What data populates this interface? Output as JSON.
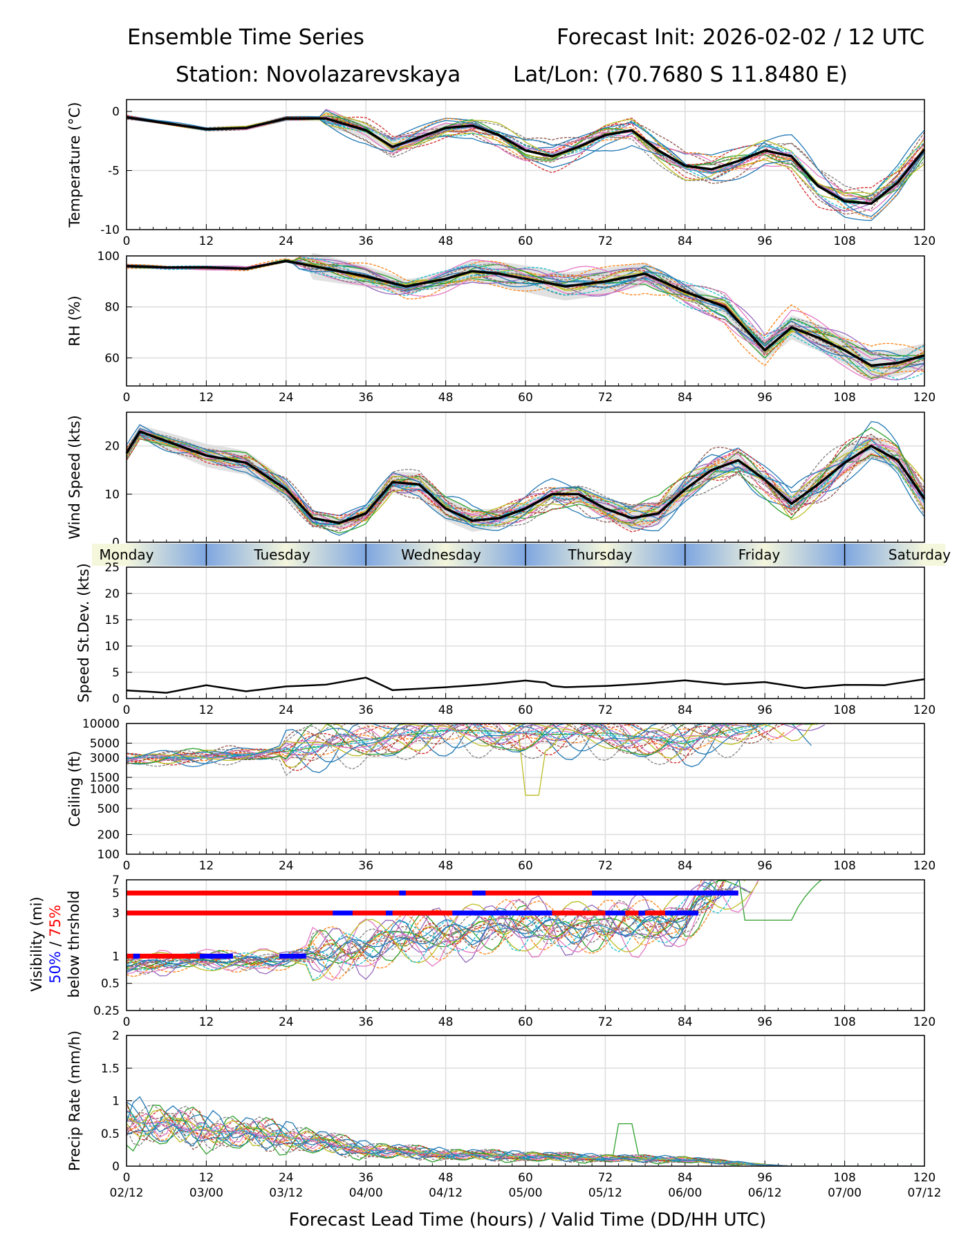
{
  "header": {
    "title_left": "Ensemble Time Series",
    "title_right": "Forecast Init: 2026-02-02 / 12 UTC",
    "station": "Station: Novolazarevskaya",
    "latlon": "Lat/Lon: (70.7680 S 11.8480 E)"
  },
  "days": [
    "Monday",
    "Tuesday",
    "Wednesday",
    "Thursday",
    "Friday",
    "Saturday"
  ],
  "x_ticks": [
    "0",
    "12",
    "24",
    "36",
    "48",
    "60",
    "72",
    "84",
    "96",
    "108",
    "120"
  ],
  "valid_ticks": [
    "02/12",
    "03/00",
    "03/12",
    "04/00",
    "04/12",
    "05/00",
    "05/12",
    "06/00",
    "06/12",
    "07/00",
    "07/12"
  ],
  "x_label": "Forecast Lead Time (hours) / Valid Time (DD/HH UTC)",
  "vis_label": {
    "line1": "Visibility (mi)",
    "p50": "50%",
    "sep": " / ",
    "p75": "75%",
    "line3": "below thrshold"
  },
  "colors": {
    "members": [
      "#1f77b4",
      "#ff7f0e",
      "#2ca02c",
      "#d62728",
      "#9467bd",
      "#8c564b",
      "#e377c2",
      "#7f7f7f",
      "#bcbd22",
      "#17becf"
    ],
    "mean": "#000000",
    "spread": "#d9d9d9",
    "p50": "#0000ff",
    "p75": "#ff0000",
    "day_bar": "#7ea6e0",
    "day_bar_light": "#f5f7dc"
  },
  "chart_data": [
    {
      "type": "line",
      "name": "temperature",
      "ylabel": "Temperature (°C)",
      "ylim": [
        -10,
        1
      ],
      "yticks": [
        0,
        -5,
        -10
      ],
      "members": 21,
      "x": [
        0,
        6,
        12,
        18,
        24,
        30,
        36,
        40,
        44,
        48,
        52,
        56,
        60,
        64,
        68,
        72,
        76,
        80,
        84,
        88,
        92,
        96,
        100,
        104,
        108,
        112,
        116,
        120
      ],
      "mean": [
        -0.5,
        -1.0,
        -1.5,
        -1.4,
        -0.6,
        -0.6,
        -1.6,
        -3.0,
        -2.2,
        -1.4,
        -1.2,
        -2.0,
        -3.3,
        -3.8,
        -3.0,
        -2.0,
        -1.6,
        -3.3,
        -4.6,
        -4.9,
        -4.2,
        -3.3,
        -3.8,
        -6.3,
        -7.6,
        -7.8,
        -6.0,
        -3.2
      ]
    },
    {
      "type": "line",
      "name": "relative_humidity",
      "ylabel": "RH (%)",
      "ylim": [
        49,
        100
      ],
      "yticks": [
        100,
        80,
        60
      ],
      "members": 21,
      "x": [
        0,
        6,
        12,
        18,
        24,
        28,
        32,
        36,
        42,
        48,
        52,
        56,
        60,
        66,
        72,
        78,
        84,
        90,
        96,
        100,
        104,
        108,
        112,
        116,
        120
      ],
      "mean": [
        96,
        95.5,
        95.5,
        95,
        98,
        96,
        94,
        92,
        88,
        91,
        94,
        93,
        91,
        88,
        90,
        93,
        86,
        80,
        63,
        72,
        68,
        63,
        57,
        58,
        61
      ]
    },
    {
      "type": "line",
      "name": "wind_speed",
      "ylabel": "Wind Speed (kts)",
      "ylim": [
        0,
        27
      ],
      "yticks": [
        0,
        10,
        20
      ],
      "members": 21,
      "x": [
        0,
        2,
        6,
        12,
        18,
        24,
        28,
        32,
        36,
        40,
        44,
        48,
        52,
        56,
        60,
        64,
        68,
        72,
        76,
        80,
        84,
        88,
        92,
        96,
        100,
        104,
        108,
        112,
        116,
        120
      ],
      "mean": [
        18.5,
        23,
        21,
        18,
        16.5,
        11,
        5,
        4,
        6,
        12.5,
        12,
        7,
        4.5,
        5,
        7,
        10,
        10,
        7,
        5,
        6,
        11,
        15,
        17,
        13,
        8,
        12,
        16.5,
        20,
        17,
        9
      ]
    },
    {
      "type": "line",
      "name": "speed_stdev",
      "ylabel": "Speed St.Dev. (kts)",
      "ylim": [
        0,
        25
      ],
      "yticks": [
        0,
        5,
        10,
        15,
        20,
        25
      ],
      "x": [
        0,
        6,
        12,
        18,
        24,
        30,
        36,
        40,
        48,
        54,
        60,
        66,
        72,
        78,
        84,
        90,
        96,
        102,
        108,
        114,
        120
      ],
      "values": [
        1.7,
        1.2,
        2.6,
        1.4,
        2.3,
        2.6,
        3.9,
        1.5,
        2.0,
        2.5,
        3.2,
        2.4,
        2.6,
        3.0,
        3.6,
        2.8,
        3.2,
        2.0,
        2.6,
        2.5,
        3.6
      ]
    },
    {
      "type": "line",
      "name": "ceiling",
      "ylabel": "Ceiling (ft)",
      "scale": "log",
      "ylim": [
        100,
        10000
      ],
      "yticks": [
        100,
        200,
        500,
        1000,
        1500,
        3000,
        5000,
        10000
      ],
      "members": 21,
      "x": [
        0,
        12,
        24,
        36,
        48,
        60,
        72,
        84,
        96,
        108
      ],
      "typical": [
        3000,
        3000,
        3800,
        5500,
        8000,
        7000,
        7000,
        5000,
        10000,
        10000
      ]
    },
    {
      "type": "line",
      "name": "visibility",
      "scale": "log",
      "ylim": [
        0.25,
        7
      ],
      "yticks": [
        0.25,
        0.5,
        1,
        3,
        5,
        7
      ],
      "members": 21,
      "x": [
        0,
        12,
        24,
        36,
        48,
        60,
        72,
        84,
        92
      ],
      "typical": [
        0.8,
        0.9,
        0.9,
        1.3,
        1.8,
        2.2,
        2.0,
        2.5,
        7
      ],
      "thresholds": [
        {
          "level": 5,
          "p75": [
            0,
            92
          ],
          "p50": [
            [
              41,
              42
            ],
            [
              52,
              54
            ],
            [
              70,
              92
            ]
          ]
        },
        {
          "level": 3,
          "p75": [
            0,
            86
          ],
          "p50": [
            [
              31,
              34
            ],
            [
              39,
              40
            ],
            [
              49,
              64
            ],
            [
              72,
              75
            ],
            [
              77,
              78
            ],
            [
              81,
              86
            ]
          ]
        },
        {
          "level": 1,
          "p75": [
            0,
            16
          ],
          "p50": [
            [
              1,
              2
            ],
            [
              11,
              16
            ],
            [
              23,
              27
            ]
          ]
        }
      ]
    },
    {
      "type": "line",
      "name": "precip_rate",
      "ylabel": "Precip Rate (mm/h)",
      "ylim": [
        0,
        2
      ],
      "yticks": [
        0.0,
        0.5,
        1.0,
        1.5,
        2.0
      ],
      "members": 21,
      "x": [
        0,
        12,
        24,
        36,
        48,
        60,
        72,
        84,
        96,
        100
      ],
      "typical": [
        0.7,
        0.55,
        0.45,
        0.25,
        0.18,
        0.15,
        0.12,
        0.1,
        0.02,
        0
      ]
    }
  ]
}
